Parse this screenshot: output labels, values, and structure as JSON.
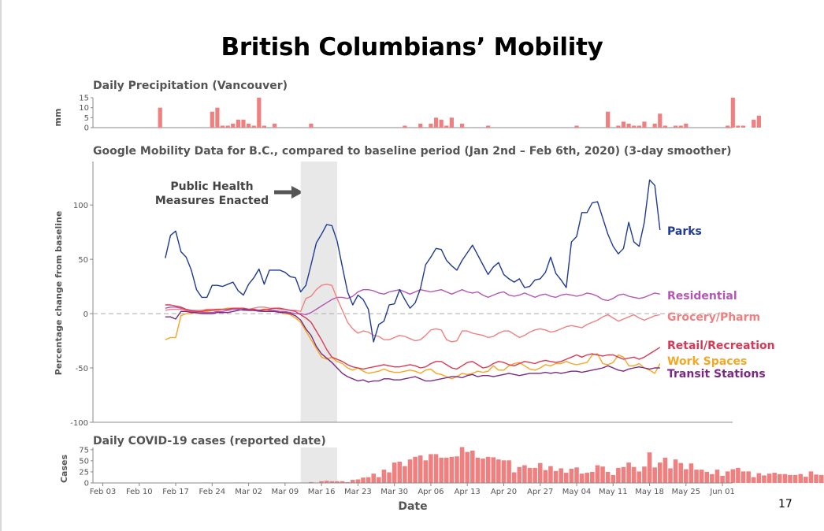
{
  "page": {
    "title": "British Columbians’ Mobility",
    "page_number": "17"
  },
  "colors": {
    "precip": "#f08080",
    "cases": "#f08080",
    "Parks": "#1f3a93",
    "Residential": "#b455b4",
    "Grocery/Pharm": "#f08080",
    "Retail/Recreation": "#d83a56",
    "Work Spaces": "#f5a623",
    "Transit Stations": "#7b2a83"
  },
  "chart_data": [
    {
      "id": "precip",
      "type": "bar",
      "title": "Daily Precipitation (Vancouver)",
      "ylabel": "mm",
      "ylim": [
        0,
        15
      ],
      "yticks": [
        0,
        5,
        10,
        15
      ],
      "x_start": "2020-02-14",
      "values": [
        10,
        0,
        0,
        0,
        0,
        0,
        0,
        0,
        0,
        0,
        8,
        10,
        1,
        1,
        2,
        4,
        4,
        2,
        1,
        15,
        1,
        0,
        2,
        0,
        0,
        0,
        0,
        0,
        0,
        2,
        0,
        0,
        0,
        0,
        0,
        0,
        0,
        0,
        0,
        0,
        0,
        0,
        0,
        0,
        0,
        0,
        0,
        1,
        0,
        0,
        2,
        0,
        2,
        5,
        4,
        1,
        5,
        0,
        2,
        0,
        0,
        0,
        0,
        1,
        0,
        0,
        0,
        0,
        0,
        0,
        0,
        0,
        0,
        0,
        0,
        0,
        0,
        0,
        0,
        0,
        1,
        0,
        0,
        0,
        0,
        0,
        8,
        0,
        1,
        3,
        2,
        1,
        1,
        3,
        0,
        2,
        7,
        1,
        0,
        1,
        1,
        2,
        0,
        0,
        0,
        0,
        0,
        0,
        0,
        1,
        15,
        1,
        1,
        0,
        4,
        6
      ]
    },
    {
      "id": "mobility",
      "type": "line",
      "title": "Google Mobility Data for B.C., compared to baseline period (Jan 2nd – Feb 6th, 2020) (3-day smoother)",
      "ylabel": "Percentage change from baseline",
      "ylim": [
        -100,
        140
      ],
      "yticks": [
        -100,
        -50,
        0,
        50,
        100
      ],
      "x_start": "2020-02-15",
      "shaded_period": [
        "2020-03-12",
        "2020-03-19"
      ],
      "annotation": [
        "Public Health",
        "Measures Enacted"
      ],
      "series": [
        {
          "name": "Parks",
          "values": [
            51,
            72,
            76,
            57,
            52,
            40,
            22,
            15,
            15,
            26,
            26,
            25,
            27,
            29,
            21,
            17,
            27,
            33,
            41,
            27,
            40,
            40,
            40,
            38,
            34,
            33,
            20,
            26,
            45,
            65,
            73,
            82,
            81,
            67,
            43,
            20,
            8,
            17,
            13,
            4,
            -26,
            -10,
            -7,
            8,
            9,
            22,
            13,
            5,
            10,
            23,
            45,
            52,
            60,
            59,
            49,
            44,
            40,
            49,
            56,
            63,
            54,
            45,
            36,
            43,
            47,
            36,
            32,
            29,
            32,
            24,
            25,
            31,
            32,
            38,
            52,
            37,
            31,
            24,
            66,
            71,
            93,
            93,
            102,
            103,
            88,
            73,
            62,
            55,
            60,
            84,
            66,
            62,
            84,
            123,
            118,
            77
          ]
        },
        {
          "name": "Residential",
          "values": [
            5,
            6,
            6,
            5,
            3,
            2,
            1,
            1,
            1,
            1,
            2,
            2,
            3,
            4,
            4,
            3,
            3,
            3,
            2,
            2,
            3,
            3,
            2,
            2,
            1,
            0,
            0,
            -1,
            1,
            4,
            7,
            10,
            13,
            15,
            15,
            14,
            16,
            20,
            22,
            22,
            21,
            19,
            18,
            20,
            21,
            22,
            20,
            18,
            20,
            22,
            21,
            20,
            21,
            22,
            20,
            18,
            20,
            22,
            20,
            19,
            20,
            17,
            15,
            17,
            19,
            20,
            17,
            16,
            17,
            19,
            17,
            15,
            17,
            18,
            16,
            15,
            17,
            18,
            17,
            16,
            17,
            19,
            18,
            16,
            13,
            12,
            14,
            17,
            18,
            16,
            15,
            14,
            15,
            17,
            19,
            18
          ]
        },
        {
          "name": "Grocery/Pharm",
          "values": [
            3,
            4,
            4,
            4,
            3,
            3,
            3,
            3,
            4,
            4,
            4,
            4,
            5,
            5,
            5,
            5,
            4,
            5,
            6,
            6,
            5,
            5,
            4,
            4,
            3,
            3,
            2,
            14,
            16,
            22,
            26,
            27,
            26,
            14,
            3,
            -8,
            -14,
            -18,
            -16,
            -17,
            -20,
            -21,
            -24,
            -24,
            -22,
            -20,
            -21,
            -23,
            -25,
            -24,
            -20,
            -15,
            -14,
            -15,
            -24,
            -26,
            -25,
            -16,
            -16,
            -18,
            -19,
            -20,
            -22,
            -21,
            -18,
            -16,
            -16,
            -19,
            -22,
            -20,
            -17,
            -15,
            -14,
            -15,
            -17,
            -16,
            -14,
            -12,
            -11,
            -12,
            -13,
            -10,
            -8,
            -6,
            -3,
            -1,
            -4,
            -7,
            -5,
            -3,
            -1,
            -4,
            -6,
            -4,
            -2,
            -1
          ]
        },
        {
          "name": "Retail/Recreation",
          "values": [
            8,
            8,
            7,
            6,
            4,
            3,
            2,
            2,
            3,
            3,
            4,
            4,
            4,
            5,
            5,
            5,
            4,
            4,
            3,
            4,
            4,
            5,
            5,
            4,
            3,
            2,
            -1,
            -4,
            -8,
            -16,
            -24,
            -33,
            -40,
            -42,
            -44,
            -47,
            -49,
            -50,
            -51,
            -50,
            -49,
            -48,
            -47,
            -48,
            -49,
            -49,
            -48,
            -47,
            -48,
            -50,
            -49,
            -46,
            -44,
            -44,
            -47,
            -50,
            -51,
            -48,
            -45,
            -44,
            -47,
            -50,
            -49,
            -46,
            -44,
            -45,
            -47,
            -48,
            -46,
            -44,
            -45,
            -46,
            -44,
            -43,
            -44,
            -45,
            -44,
            -42,
            -40,
            -38,
            -40,
            -38,
            -37,
            -38,
            -39,
            -38,
            -38,
            -40,
            -42,
            -41,
            -40,
            -42,
            -40,
            -37,
            -34,
            -31
          ]
        },
        {
          "name": "Work Spaces",
          "values": [
            -24,
            -22,
            -22,
            -2,
            0,
            0,
            1,
            2,
            2,
            3,
            3,
            4,
            5,
            5,
            5,
            5,
            4,
            3,
            3,
            3,
            2,
            2,
            1,
            0,
            -1,
            -4,
            -8,
            -16,
            -24,
            -32,
            -40,
            -42,
            -40,
            -44,
            -46,
            -50,
            -52,
            -50,
            -53,
            -55,
            -54,
            -53,
            -51,
            -53,
            -54,
            -54,
            -53,
            -52,
            -53,
            -55,
            -52,
            -51,
            -55,
            -56,
            -58,
            -60,
            -58,
            -55,
            -56,
            -55,
            -53,
            -54,
            -53,
            -48,
            -52,
            -52,
            -48,
            -46,
            -45,
            -48,
            -51,
            -52,
            -50,
            -47,
            -48,
            -46,
            -46,
            -44,
            -46,
            -47,
            -46,
            -45,
            -38,
            -37,
            -46,
            -47,
            -45,
            -38,
            -40,
            -48,
            -48,
            -46,
            -50,
            -52,
            -55,
            -46
          ]
        },
        {
          "name": "Transit Stations",
          "values": [
            -3,
            -3,
            -5,
            2,
            2,
            1,
            1,
            0,
            0,
            0,
            1,
            1,
            1,
            2,
            3,
            4,
            3,
            3,
            3,
            2,
            2,
            2,
            1,
            1,
            0,
            -2,
            -6,
            -14,
            -20,
            -30,
            -37,
            -41,
            -45,
            -50,
            -55,
            -58,
            -60,
            -62,
            -61,
            -63,
            -62,
            -62,
            -60,
            -60,
            -61,
            -61,
            -60,
            -59,
            -58,
            -60,
            -62,
            -62,
            -61,
            -60,
            -59,
            -58,
            -58,
            -59,
            -57,
            -56,
            -58,
            -57,
            -57,
            -58,
            -57,
            -56,
            -55,
            -56,
            -57,
            -56,
            -55,
            -55,
            -55,
            -54,
            -55,
            -54,
            -55,
            -54,
            -53,
            -53,
            -54,
            -53,
            -52,
            -51,
            -50,
            -48,
            -50,
            -52,
            -53,
            -51,
            -50,
            -49,
            -50,
            -51,
            -50,
            -50
          ]
        }
      ],
      "label_order": [
        "Parks",
        "Residential",
        "Grocery/Pharm",
        "Retail/Recreation",
        "Work Spaces",
        "Transit Stations"
      ]
    },
    {
      "id": "cases",
      "type": "bar",
      "title": "Daily COVID-19 cases (reported date)",
      "xlabel": "Date",
      "ylabel": "Cases",
      "ylim": [
        0,
        80
      ],
      "yticks": [
        0,
        25,
        50,
        75
      ],
      "x_start": "2020-02-03",
      "x_tick_labels": [
        "Feb 03",
        "Feb 10",
        "Feb 17",
        "Feb 24",
        "Mar 02",
        "Mar 09",
        "Mar 16",
        "Mar 23",
        "Mar 30",
        "Apr 06",
        "Apr 13",
        "Apr 20",
        "Apr 27",
        "May 04",
        "May 11",
        "May 18",
        "May 25",
        "Jun 01"
      ],
      "values": [
        0,
        0,
        0,
        0,
        0,
        0,
        0,
        0,
        0,
        0,
        0,
        0,
        0,
        0,
        0,
        0,
        0,
        0,
        0,
        0,
        1,
        0,
        0,
        0,
        0,
        0,
        1,
        0,
        0,
        0,
        0,
        0,
        0,
        0,
        1,
        1,
        0,
        0,
        0,
        0,
        2,
        0,
        4,
        5,
        4,
        4,
        4,
        2,
        7,
        8,
        12,
        13,
        21,
        13,
        30,
        24,
        46,
        48,
        38,
        53,
        59,
        62,
        51,
        65,
        65,
        57,
        57,
        59,
        60,
        81,
        70,
        73,
        57,
        55,
        59,
        58,
        53,
        51,
        51,
        24,
        36,
        40,
        34,
        34,
        45,
        29,
        38,
        27,
        33,
        23,
        32,
        35,
        21,
        23,
        25,
        40,
        37,
        25,
        18,
        34,
        36,
        46,
        36,
        26,
        37,
        69,
        35,
        46,
        57,
        33,
        53,
        45,
        31,
        44,
        30,
        30,
        25,
        20,
        30,
        16,
        26,
        31,
        34,
        26,
        26,
        13,
        22,
        17,
        21,
        23,
        20,
        20,
        18,
        18,
        20,
        14,
        26,
        19,
        18,
        24
      ]
    }
  ]
}
